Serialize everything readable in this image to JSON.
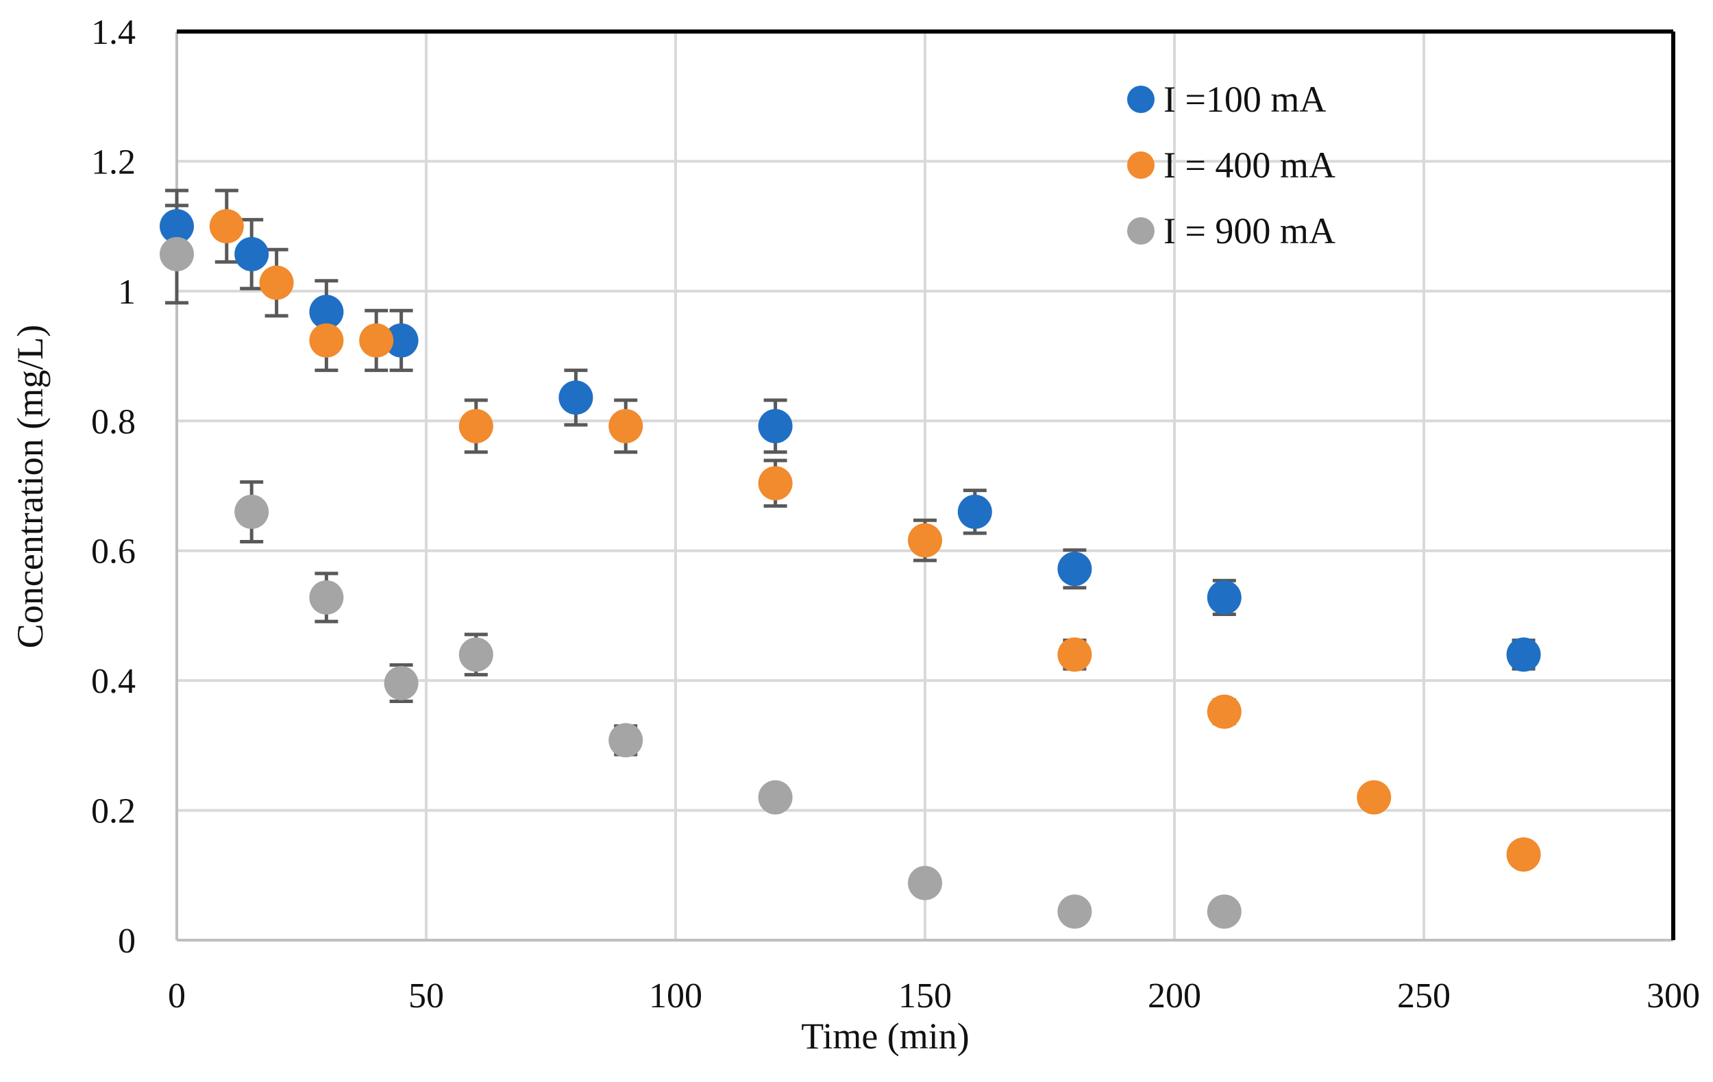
{
  "chart_data": {
    "type": "scatter",
    "title": "",
    "xlabel": "Time (min)",
    "ylabel": "Concentration  (mg/L)",
    "xlim": [
      0,
      300
    ],
    "ylim": [
      0,
      1.4
    ],
    "x_ticks": [
      0,
      50,
      100,
      150,
      200,
      250,
      300
    ],
    "y_ticks": [
      0,
      0.2,
      0.4,
      0.6,
      0.8,
      1,
      1.2,
      1.4
    ],
    "x_tick_labels": [
      "0",
      "50",
      "100",
      "150",
      "200",
      "250",
      "300"
    ],
    "y_tick_labels": [
      "0",
      "0.2",
      "0.4",
      "0.6",
      "0.8",
      "1",
      "1.2",
      "1.4"
    ],
    "grid": true,
    "legend_position": "top-right",
    "series": [
      {
        "name": "I =100 mA",
        "color": "#1f6fc5",
        "points": [
          {
            "x": 0,
            "y": 1.1,
            "err": 0.055
          },
          {
            "x": 15,
            "y": 1.057,
            "err": 0.053
          },
          {
            "x": 30,
            "y": 0.968,
            "err": 0.048
          },
          {
            "x": 45,
            "y": 0.924,
            "err": 0.046
          },
          {
            "x": 80,
            "y": 0.836,
            "err": 0.042
          },
          {
            "x": 120,
            "y": 0.792,
            "err": 0.04
          },
          {
            "x": 160,
            "y": 0.66,
            "err": 0.033
          },
          {
            "x": 180,
            "y": 0.572,
            "err": 0.029
          },
          {
            "x": 210,
            "y": 0.528,
            "err": 0.026
          },
          {
            "x": 270,
            "y": 0.44,
            "err": 0.022
          }
        ]
      },
      {
        "name": "I = 400 mA",
        "color": "#f28a2e",
        "points": [
          {
            "x": 10,
            "y": 1.1,
            "err": 0.055
          },
          {
            "x": 20,
            "y": 1.013,
            "err": 0.051
          },
          {
            "x": 30,
            "y": 0.924,
            "err": 0.046
          },
          {
            "x": 40,
            "y": 0.924,
            "err": 0.046
          },
          {
            "x": 60,
            "y": 0.792,
            "err": 0.04
          },
          {
            "x": 90,
            "y": 0.792,
            "err": 0.04
          },
          {
            "x": 120,
            "y": 0.704,
            "err": 0.035
          },
          {
            "x": 150,
            "y": 0.616,
            "err": 0.031
          },
          {
            "x": 180,
            "y": 0.44,
            "err": 0.022
          },
          {
            "x": 210,
            "y": 0.352,
            "err": 0.018
          },
          {
            "x": 240,
            "y": 0.22,
            "err": 0.011
          },
          {
            "x": 270,
            "y": 0.132,
            "err": 0.007
          }
        ]
      },
      {
        "name": "I = 900 mA",
        "color": "#a5a5a5",
        "points": [
          {
            "x": 0,
            "y": 1.057,
            "err": 0.075
          },
          {
            "x": 15,
            "y": 0.66,
            "err": 0.046
          },
          {
            "x": 30,
            "y": 0.528,
            "err": 0.037
          },
          {
            "x": 45,
            "y": 0.396,
            "err": 0.028
          },
          {
            "x": 60,
            "y": 0.44,
            "err": 0.031
          },
          {
            "x": 90,
            "y": 0.308,
            "err": 0.022
          },
          {
            "x": 120,
            "y": 0.22,
            "err": 0.015
          },
          {
            "x": 150,
            "y": 0.088,
            "err": 0.006
          },
          {
            "x": 180,
            "y": 0.044,
            "err": 0.003
          },
          {
            "x": 210,
            "y": 0.044,
            "err": 0.003
          }
        ]
      }
    ]
  }
}
